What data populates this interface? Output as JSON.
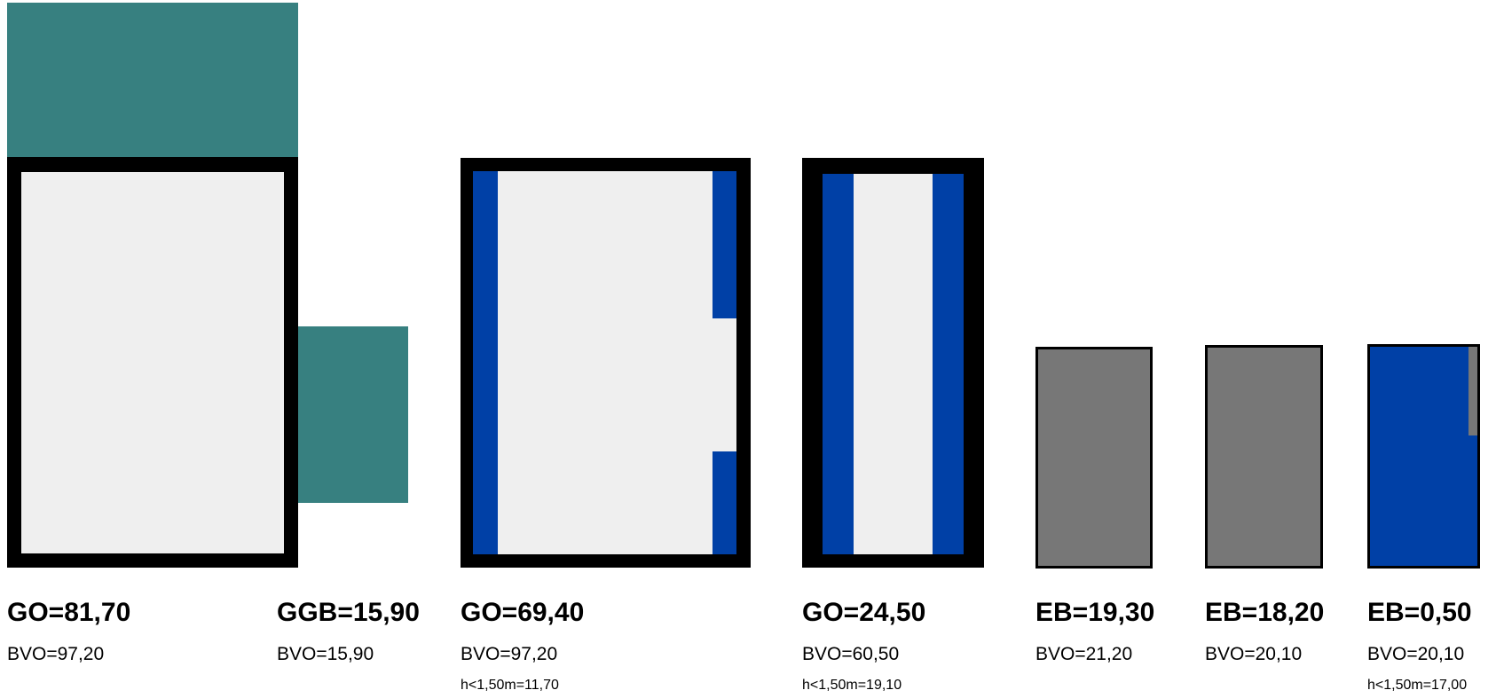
{
  "colors": {
    "teal": "#378080",
    "outline": "#000000",
    "floor": "#efefef",
    "blue": "#0040a6",
    "gray": "#777777"
  },
  "rooms": [
    {
      "id": "room1",
      "main": "GO=81,70",
      "bvo": "BVO=97,20",
      "h": ""
    },
    {
      "id": "room2",
      "main": "GGB=15,90",
      "bvo": "BVO=15,90",
      "h": ""
    },
    {
      "id": "room3",
      "main": "GO=69,40",
      "bvo": "BVO=97,20",
      "h": "h<1,50m=11,70"
    },
    {
      "id": "room4",
      "main": "GO=24,50",
      "bvo": "BVO=60,50",
      "h": "h<1,50m=19,10"
    },
    {
      "id": "room5",
      "main": "EB=19,30",
      "bvo": "BVO=21,20",
      "h": ""
    },
    {
      "id": "room6",
      "main": "EB=18,20",
      "bvo": "BVO=20,10",
      "h": ""
    },
    {
      "id": "room7",
      "main": "EB=0,50",
      "bvo": "BVO=20,10",
      "h": "h<1,50m=17,00"
    }
  ]
}
